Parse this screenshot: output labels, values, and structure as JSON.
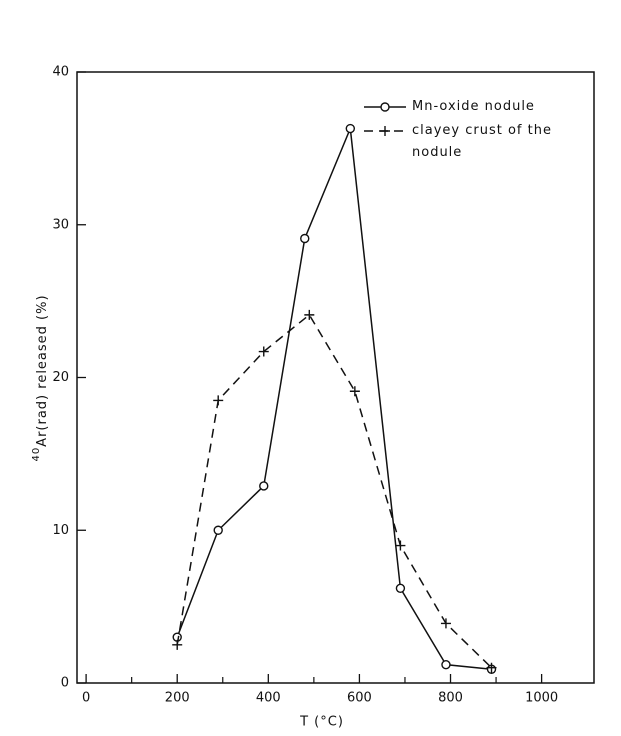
{
  "chart_data": {
    "type": "line",
    "ylabel_superscript": "40",
    "ylabel": "Ar(rad)  released  (%)",
    "xlabel": "T   (°C)",
    "x": [
      200,
      290,
      390,
      480,
      580,
      690,
      790,
      890
    ],
    "series": [
      {
        "name": "Mn-oxide nodule",
        "color": "#111111",
        "marker": "circle",
        "dash": false,
        "x": [
          200,
          290,
          390,
          480,
          580,
          690,
          790,
          890
        ],
        "values": [
          3.0,
          10.0,
          12.9,
          29.1,
          36.3,
          6.2,
          1.2,
          0.9
        ]
      },
      {
        "name": "clayey crust of the nodule",
        "color": "#111111",
        "marker": "plus",
        "dash": true,
        "x": [
          200,
          290,
          390,
          490,
          590,
          690,
          790,
          890
        ],
        "values": [
          2.5,
          18.5,
          21.7,
          24.1,
          19.1,
          9.0,
          3.9,
          1.0
        ]
      }
    ],
    "xlim": [
      -20,
      1115
    ],
    "ylim": [
      0,
      40
    ],
    "xticks": [
      0,
      200,
      400,
      600,
      800,
      1000
    ],
    "xminorticks": [
      100,
      300,
      500,
      700,
      900
    ],
    "yticks": [
      0,
      10,
      20,
      30,
      40
    ],
    "legend": "upper right",
    "grid": false
  }
}
